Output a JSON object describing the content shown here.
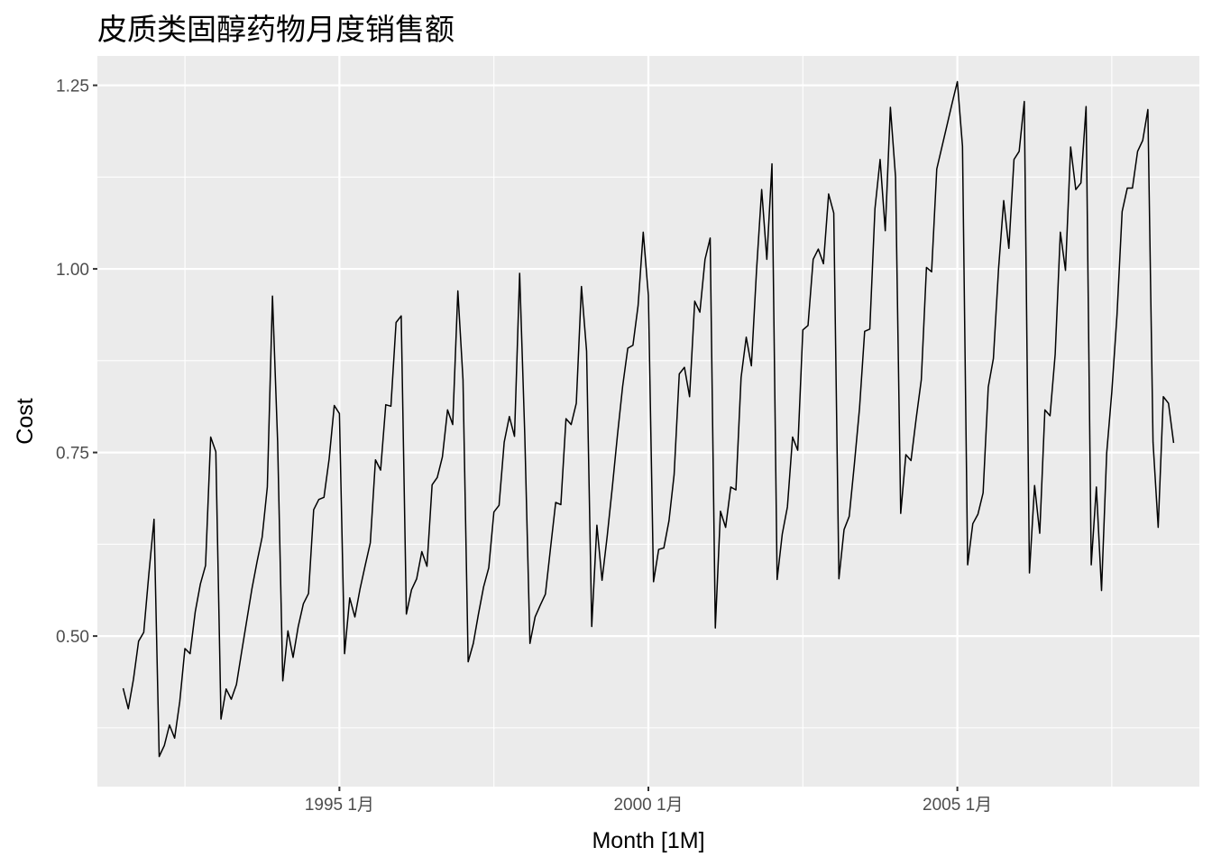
{
  "chart_data": {
    "type": "line",
    "title": "皮质类固醇药物月度销售额",
    "xlabel": "Month [1M]",
    "ylabel": "Cost",
    "y_ticks": [
      {
        "value": 0.5,
        "label": "0.50"
      },
      {
        "value": 0.75,
        "label": "0.75"
      },
      {
        "value": 1.0,
        "label": "1.00"
      },
      {
        "value": 1.25,
        "label": "1.25"
      }
    ],
    "x_ticks": [
      {
        "value": "1995-01",
        "label": "1995 1月"
      },
      {
        "value": "2000-01",
        "label": "2000 1月"
      },
      {
        "value": "2005-01",
        "label": "2005 1月"
      }
    ],
    "x_range": [
      "1991-02",
      "2008-12"
    ],
    "ylim": [
      0.295,
      1.29
    ],
    "grid": true,
    "background": "#ebebeb",
    "line_color": "#000000",
    "series": [
      {
        "start": "1991-07",
        "values": [
          0.429,
          0.401,
          0.441,
          0.493,
          0.505,
          0.585,
          0.659,
          0.336,
          0.351,
          0.379,
          0.361,
          0.411,
          0.483,
          0.476,
          0.533,
          0.571,
          0.596,
          0.771,
          0.751,
          0.387,
          0.428,
          0.414,
          0.434,
          0.478,
          0.521,
          0.564,
          0.601,
          0.635,
          0.703,
          0.963,
          0.765,
          0.439,
          0.507,
          0.471,
          0.513,
          0.544,
          0.558,
          0.672,
          0.686,
          0.689,
          0.741,
          0.814,
          0.803,
          0.476,
          0.552,
          0.526,
          0.564,
          0.596,
          0.627,
          0.74,
          0.726,
          0.815,
          0.813,
          0.927,
          0.936,
          0.53,
          0.563,
          0.578,
          0.615,
          0.595,
          0.706,
          0.716,
          0.744,
          0.808,
          0.788,
          0.97,
          0.849,
          0.465,
          0.49,
          0.53,
          0.567,
          0.593,
          0.669,
          0.678,
          0.764,
          0.799,
          0.772,
          0.994,
          0.773,
          0.49,
          0.526,
          0.542,
          0.557,
          0.62,
          0.682,
          0.679,
          0.796,
          0.788,
          0.817,
          0.976,
          0.888,
          0.513,
          0.651,
          0.576,
          0.636,
          0.703,
          0.774,
          0.84,
          0.892,
          0.896,
          0.95,
          1.05,
          0.964,
          0.574,
          0.618,
          0.62,
          0.657,
          0.72,
          0.857,
          0.866,
          0.826,
          0.956,
          0.941,
          1.013,
          1.042,
          0.511,
          0.67,
          0.648,
          0.703,
          0.699,
          0.852,
          0.907,
          0.868,
          0.998,
          1.108,
          1.013,
          1.143,
          0.577,
          0.639,
          0.676,
          0.771,
          0.753,
          0.917,
          0.923,
          1.013,
          1.027,
          1.007,
          1.102,
          1.076,
          0.578,
          0.645,
          0.663,
          0.734,
          0.81,
          0.915,
          0.918,
          1.082,
          1.149,
          1.052,
          1.22,
          1.125,
          0.667,
          0.747,
          0.739,
          0.796,
          0.849,
          1.002,
          0.996,
          1.136,
          1.166,
          1.196,
          1.226,
          1.255,
          1.167,
          0.597,
          0.653,
          0.666,
          0.695,
          0.839,
          0.878,
          1.0,
          1.093,
          1.028,
          1.149,
          1.16,
          1.228,
          0.586,
          0.705,
          0.64,
          0.808,
          0.8,
          0.884,
          1.05,
          0.998,
          1.166,
          1.108,
          1.117,
          1.221,
          0.597,
          0.703,
          0.562,
          0.749,
          0.833,
          0.937,
          1.078,
          1.11,
          1.11,
          1.16,
          1.175,
          1.217,
          0.764,
          0.648,
          0.826,
          0.817,
          0.763
        ]
      }
    ]
  }
}
